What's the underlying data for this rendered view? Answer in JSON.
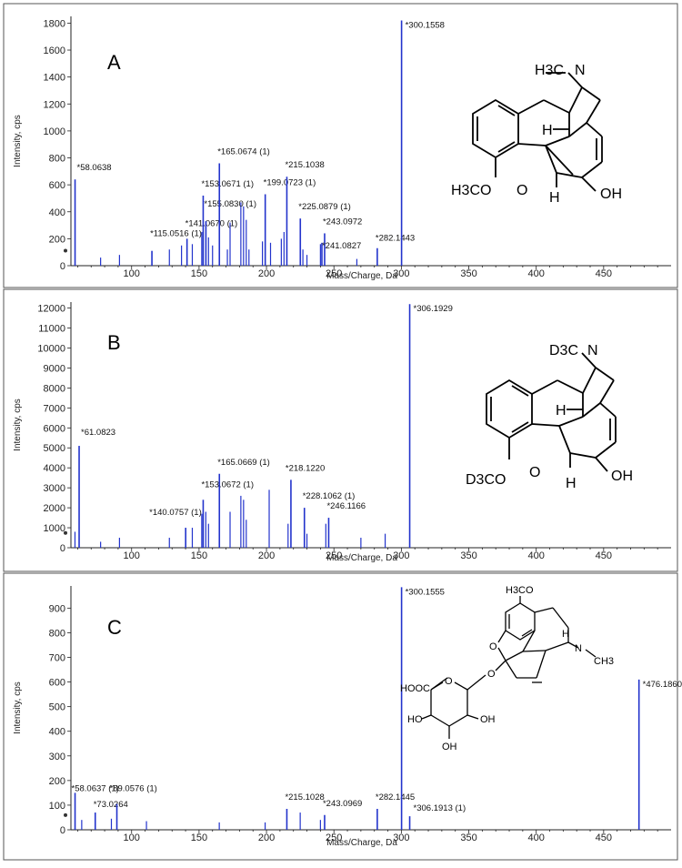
{
  "panel_letters": [
    "A",
    "B",
    "C"
  ],
  "chart_data": [
    {
      "type": "bar",
      "panel": "A",
      "xlabel": "Mass/Charge, Da",
      "ylabel": "Intensity, cps",
      "xlim": [
        55,
        500
      ],
      "ylim": [
        0,
        1850
      ],
      "xticks": [
        100,
        150,
        200,
        250,
        300,
        350,
        400,
        450
      ],
      "yticks": [
        0,
        200,
        400,
        600,
        800,
        1000,
        1200,
        1400,
        1600,
        1800
      ],
      "labeled_peaks": [
        {
          "label": "*58.0638",
          "x": 58.06,
          "y": 640
        },
        {
          "label": "*115.0516 (1)",
          "x": 115.05,
          "y": 110
        },
        {
          "label": "*141.0670 (1)",
          "x": 141.07,
          "y": 200
        },
        {
          "label": "*153.0671 (1)",
          "x": 153.07,
          "y": 520
        },
        {
          "label": "*155.0830 (1)",
          "x": 155.08,
          "y": 330
        },
        {
          "label": "*165.0674 (1)",
          "x": 165.07,
          "y": 760
        },
        {
          "label": "*199.0723 (1)",
          "x": 199.07,
          "y": 530
        },
        {
          "label": "*215.1038",
          "x": 215.1,
          "y": 660
        },
        {
          "label": "*225.0879 (1)",
          "x": 225.09,
          "y": 350
        },
        {
          "label": "*243.0972",
          "x": 243.1,
          "y": 240
        },
        {
          "label": "*241.0827",
          "x": 241.08,
          "y": 170
        },
        {
          "label": "*282.1443",
          "x": 282.14,
          "y": 130
        },
        {
          "label": "*300.1558",
          "x": 300.16,
          "y": 1820
        }
      ],
      "other_peaks": [
        {
          "x": 77,
          "y": 60
        },
        {
          "x": 91,
          "y": 80
        },
        {
          "x": 128,
          "y": 120
        },
        {
          "x": 137,
          "y": 150
        },
        {
          "x": 145,
          "y": 160
        },
        {
          "x": 152,
          "y": 250
        },
        {
          "x": 157,
          "y": 210
        },
        {
          "x": 160,
          "y": 150
        },
        {
          "x": 171,
          "y": 120
        },
        {
          "x": 173,
          "y": 320
        },
        {
          "x": 181,
          "y": 470
        },
        {
          "x": 183,
          "y": 440
        },
        {
          "x": 185,
          "y": 340
        },
        {
          "x": 187,
          "y": 120
        },
        {
          "x": 197,
          "y": 180
        },
        {
          "x": 203,
          "y": 170
        },
        {
          "x": 211,
          "y": 200
        },
        {
          "x": 213,
          "y": 250
        },
        {
          "x": 227,
          "y": 120
        },
        {
          "x": 230,
          "y": 80
        },
        {
          "x": 240,
          "y": 160
        },
        {
          "x": 267,
          "y": 50
        }
      ]
    },
    {
      "type": "bar",
      "panel": "B",
      "xlabel": "Mass/Charge, Da",
      "ylabel": "Intensity, cps",
      "xlim": [
        55,
        500
      ],
      "ylim": [
        0,
        12300
      ],
      "xticks": [
        100,
        150,
        200,
        250,
        300,
        350,
        400,
        450
      ],
      "yticks": [
        0,
        1000,
        2000,
        3000,
        4000,
        5000,
        6000,
        7000,
        8000,
        9000,
        10000,
        11000,
        12000
      ],
      "labeled_peaks": [
        {
          "label": "*61.0823",
          "x": 61.08,
          "y": 5100
        },
        {
          "label": "*140.0757 (1)",
          "x": 140.08,
          "y": 1000
        },
        {
          "label": "*153.0672 (1)",
          "x": 153.07,
          "y": 2400
        },
        {
          "label": "*165.0669 (1)",
          "x": 165.07,
          "y": 3700
        },
        {
          "label": "*218.1220",
          "x": 218.12,
          "y": 3400
        },
        {
          "label": "*228.1062 (1)",
          "x": 228.11,
          "y": 2000
        },
        {
          "label": "*246.1166",
          "x": 246.12,
          "y": 1500
        },
        {
          "label": "*306.1929",
          "x": 306.19,
          "y": 12200
        }
      ],
      "other_peaks": [
        {
          "x": 58,
          "y": 800
        },
        {
          "x": 77,
          "y": 300
        },
        {
          "x": 91,
          "y": 500
        },
        {
          "x": 128,
          "y": 500
        },
        {
          "x": 145,
          "y": 1000
        },
        {
          "x": 152,
          "y": 1700
        },
        {
          "x": 155,
          "y": 1800
        },
        {
          "x": 157,
          "y": 1200
        },
        {
          "x": 173,
          "y": 1800
        },
        {
          "x": 181,
          "y": 2600
        },
        {
          "x": 183,
          "y": 2400
        },
        {
          "x": 185,
          "y": 1400
        },
        {
          "x": 202,
          "y": 2900
        },
        {
          "x": 216,
          "y": 1200
        },
        {
          "x": 230,
          "y": 700
        },
        {
          "x": 244,
          "y": 1200
        },
        {
          "x": 270,
          "y": 500
        },
        {
          "x": 288,
          "y": 700
        }
      ]
    },
    {
      "type": "bar",
      "panel": "C",
      "xlabel": "Mass/Charge, Da",
      "ylabel": "Intensity, cps",
      "xlim": [
        55,
        500
      ],
      "ylim": [
        0,
        990
      ],
      "xticks": [
        100,
        150,
        200,
        250,
        300,
        350,
        400,
        450
      ],
      "yticks": [
        0,
        100,
        200,
        300,
        400,
        500,
        600,
        700,
        800,
        900
      ],
      "labeled_peaks": [
        {
          "label": "*58.0637 (1)",
          "x": 58.06,
          "y": 150
        },
        {
          "label": "*73.0264",
          "x": 73.03,
          "y": 70
        },
        {
          "label": "*89.0576 (1)",
          "x": 89.06,
          "y": 105
        },
        {
          "label": "*215.1028",
          "x": 215.1,
          "y": 85
        },
        {
          "label": "*243.0969",
          "x": 243.1,
          "y": 60
        },
        {
          "label": "*282.1445",
          "x": 282.14,
          "y": 85
        },
        {
          "label": "*300.1555",
          "x": 300.16,
          "y": 985
        },
        {
          "label": "*306.1913 (1)",
          "x": 306.19,
          "y": 55
        },
        {
          "label": "*476.1860",
          "x": 476.19,
          "y": 610
        }
      ],
      "other_peaks": [
        {
          "x": 63,
          "y": 40
        },
        {
          "x": 85,
          "y": 45
        },
        {
          "x": 111,
          "y": 35
        },
        {
          "x": 165,
          "y": 30
        },
        {
          "x": 199,
          "y": 30
        },
        {
          "x": 225,
          "y": 70
        },
        {
          "x": 240,
          "y": 40
        }
      ]
    }
  ],
  "structures": {
    "A": {
      "substituents": [
        "H3C",
        "N",
        "H",
        "H3CO",
        "O",
        "H",
        "OH"
      ]
    },
    "B": {
      "substituents": [
        "D3C",
        "N",
        "H",
        "D3CO",
        "O",
        "H",
        "OH"
      ]
    },
    "C": {
      "substituents": [
        "H3CO",
        "O",
        "N",
        "H",
        "CH3",
        "O",
        "HOOC",
        "O",
        "O",
        "HO",
        "OH",
        "OH"
      ]
    }
  },
  "colors": {
    "spectrum": "#2233cc",
    "axis": "#222222",
    "frame": "#555555"
  }
}
